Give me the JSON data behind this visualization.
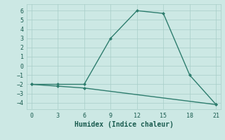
{
  "xlabel": "Humidex (Indice chaleur)",
  "line1_x": [
    0,
    3,
    6,
    9,
    12,
    15,
    18,
    21
  ],
  "line1_y": [
    -2,
    -2,
    -2,
    3,
    6,
    5.7,
    -1,
    -4.2
  ],
  "line2_x": [
    0,
    3,
    6,
    21
  ],
  "line2_y": [
    -2,
    -2.2,
    -2.4,
    -4.2
  ],
  "line_color": "#2e7d6e",
  "bg_color": "#cce8e4",
  "grid_color": "#a8cdc8",
  "xlim": [
    -0.5,
    21.5
  ],
  "ylim": [
    -4.7,
    6.7
  ],
  "xticks": [
    0,
    3,
    6,
    9,
    12,
    15,
    18,
    21
  ],
  "yticks": [
    -4,
    -3,
    -2,
    -1,
    0,
    1,
    2,
    3,
    4,
    5,
    6
  ],
  "font_color": "#1a5c50",
  "marker": "D",
  "markersize": 2.5,
  "linewidth": 1.0,
  "tick_fontsize": 6.0,
  "xlabel_fontsize": 7.0
}
